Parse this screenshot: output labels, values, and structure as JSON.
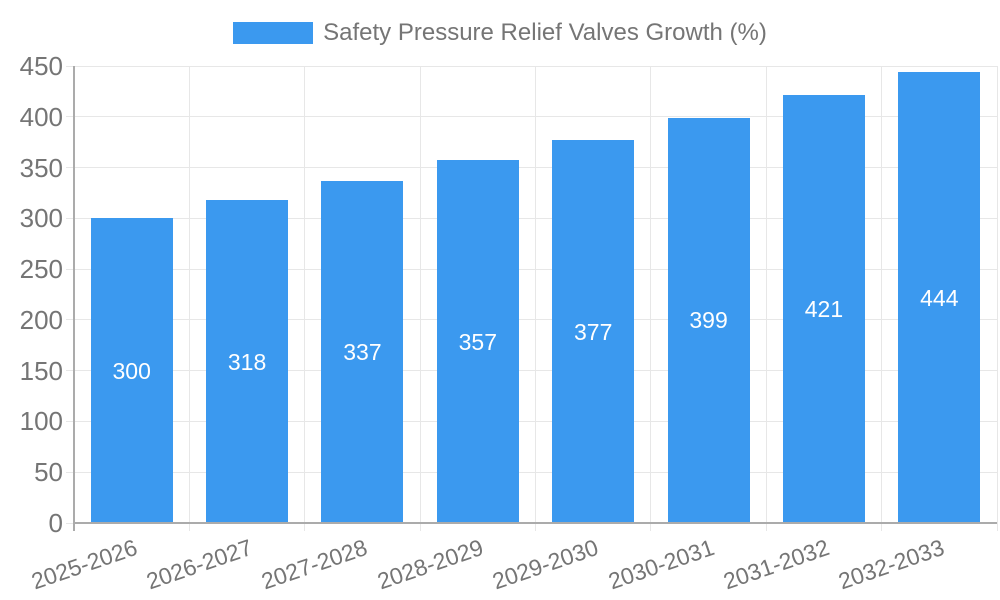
{
  "legend": {
    "label": "Safety Pressure Relief Valves Growth (%)"
  },
  "colors": {
    "bar": "#3b99ef",
    "grid": "#e7e7e7",
    "axis": "#ababab",
    "tick_text": "#757575",
    "bar_label_text": "#ffffff",
    "background": "#ffffff"
  },
  "chart_data": {
    "type": "bar",
    "title": "Safety Pressure Relief Valves Growth (%)",
    "categories": [
      "2025-2026",
      "2026-2027",
      "2027-2028",
      "2028-2029",
      "2029-2030",
      "2030-2031",
      "2031-2032",
      "2032-2033"
    ],
    "values": [
      300,
      318,
      337,
      357,
      377,
      399,
      421,
      444
    ],
    "xlabel": "",
    "ylabel": "",
    "ylim": [
      0,
      450
    ],
    "yticks": [
      0,
      50,
      100,
      150,
      200,
      250,
      300,
      350,
      400,
      450
    ],
    "grid": true,
    "legend_position": "top",
    "data_label_position": "inside-center",
    "x_tick_rotation_deg": -19
  }
}
